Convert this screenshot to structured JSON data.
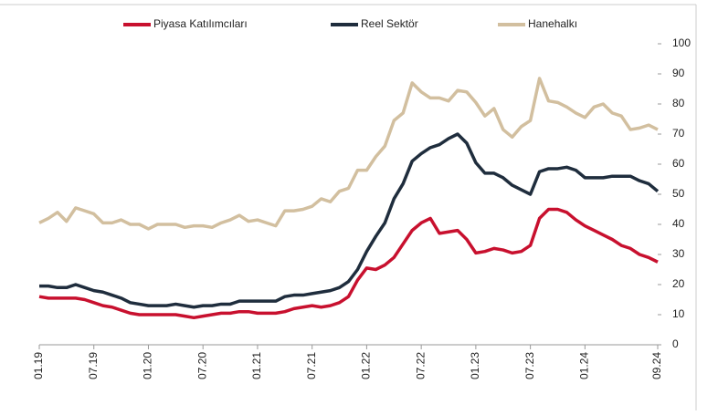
{
  "chart_data": {
    "type": "line",
    "categories": [
      "01.19",
      null,
      null,
      null,
      null,
      null,
      "07.19",
      null,
      null,
      null,
      null,
      null,
      "01.20",
      null,
      null,
      null,
      null,
      null,
      "07.20",
      null,
      null,
      null,
      null,
      null,
      "01.21",
      null,
      null,
      null,
      null,
      null,
      "07.21",
      null,
      null,
      null,
      null,
      null,
      "01.22",
      null,
      null,
      null,
      null,
      null,
      "07.22",
      null,
      null,
      null,
      null,
      null,
      "01.23",
      null,
      null,
      null,
      null,
      null,
      "07.23",
      null,
      null,
      null,
      null,
      null,
      "01.24",
      null,
      null,
      null,
      null,
      null,
      null,
      null,
      "09.24"
    ],
    "series": [
      {
        "name": "Piyasa Katılımcıları",
        "color": "#c8102e",
        "values": [
          16,
          15.5,
          15.5,
          15.5,
          15.5,
          15,
          14,
          13,
          12.5,
          11.5,
          10.5,
          10,
          10,
          10,
          10,
          10,
          9.5,
          9,
          9.5,
          10,
          10.5,
          10.5,
          11,
          11,
          10.5,
          10.5,
          10.5,
          11,
          12,
          12.5,
          13,
          12.5,
          13,
          14,
          16,
          21.5,
          25.5,
          25,
          26.5,
          29,
          33.5,
          38,
          40.5,
          42,
          37,
          37.5,
          38,
          35,
          30.5,
          31,
          32,
          31.5,
          30.5,
          31,
          33,
          42,
          45,
          45,
          44,
          41.5,
          39.5,
          38,
          36.5,
          35,
          33,
          32,
          30,
          29,
          27.5
        ]
      },
      {
        "name": "Reel Sektör",
        "color": "#1f2d3d",
        "values": [
          19.5,
          19.5,
          19,
          19,
          20,
          19,
          18,
          17.5,
          16.5,
          15.5,
          14,
          13.5,
          13,
          13,
          13,
          13.5,
          13,
          12.5,
          13,
          13,
          13.5,
          13.5,
          14.5,
          14.5,
          14.5,
          14.5,
          14.5,
          16,
          16.5,
          16.5,
          17,
          17.5,
          18,
          19,
          21,
          25,
          31,
          36,
          40.5,
          48.5,
          53.5,
          61,
          63.5,
          65.5,
          66.5,
          68.5,
          70,
          67,
          60.5,
          57,
          57,
          55.5,
          53,
          51.5,
          50,
          57.5,
          58.5,
          58.5,
          59,
          58,
          55.5,
          55.5,
          55.5,
          56,
          56,
          56,
          54.5,
          53.5,
          51
        ]
      },
      {
        "name": "Hanehalkı",
        "color": "#d2bf9f",
        "values": [
          40.5,
          42,
          44,
          41,
          45.5,
          44.5,
          43.5,
          40.5,
          40.5,
          41.5,
          40,
          40,
          38.5,
          40,
          40,
          40,
          39,
          39.5,
          39.5,
          39,
          40.5,
          41.5,
          43,
          41,
          41.5,
          40.5,
          39.5,
          44.5,
          44.5,
          45,
          46,
          48.5,
          47.5,
          51,
          52,
          58,
          58,
          62.5,
          66,
          74.5,
          77,
          87,
          84,
          82,
          82,
          81,
          84.5,
          84,
          80.5,
          76,
          78.5,
          71.5,
          69,
          72.5,
          74.5,
          88.5,
          81,
          80.5,
          79,
          77,
          75.5,
          79,
          80,
          77,
          76,
          71.5,
          72,
          73,
          71.5
        ]
      }
    ],
    "ylim": [
      0,
      100
    ],
    "yticks": [
      0,
      10,
      20,
      30,
      40,
      50,
      60,
      70,
      80,
      90,
      100
    ],
    "y_axis_side": "right",
    "legend": "top"
  }
}
